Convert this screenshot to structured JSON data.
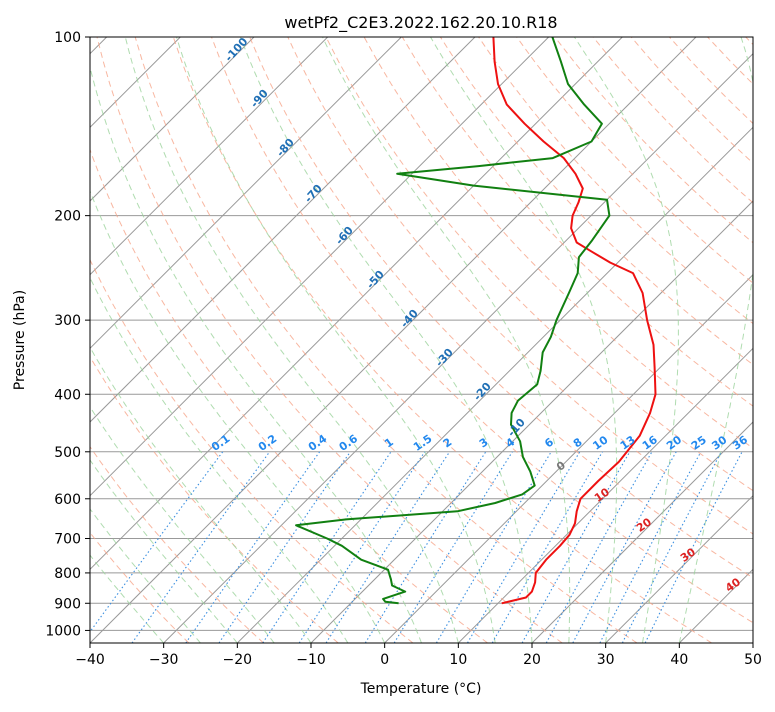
{
  "chart_data": {
    "type": "line",
    "title": "wetPf2_C2E3.2022.162.20.10.R18",
    "xlabel": "Temperature (°C)",
    "ylabel": "Pressure (hPa)",
    "xlim": [
      -40,
      50
    ],
    "ylim": [
      1050,
      100
    ],
    "y_scale": "log",
    "grid": true,
    "x_ticks": [
      -40,
      -30,
      -20,
      -10,
      0,
      10,
      20,
      30,
      40,
      50
    ],
    "y_ticks": [
      100,
      200,
      300,
      400,
      500,
      600,
      700,
      800,
      900,
      1000
    ],
    "skew_description": "skew-T log-P diagram",
    "colors": {
      "temperature": "#ee1111",
      "dewpoint": "#118011",
      "isotherm_grid": "#999999",
      "dry_adiabat": "#f6a58a",
      "moist_adiabat": "#9cd39c",
      "mixing_ratio": "#3b8fe0",
      "mixing_label": "#2288ee",
      "theta_e_label": "#1f6fb5",
      "lcl_label": "#777777",
      "warm_label": "#dd2222"
    },
    "series": [
      {
        "key": "temperature",
        "points": [
          [
            10.5,
            900
          ],
          [
            13.0,
            880
          ],
          [
            13.0,
            860
          ],
          [
            12.2,
            830
          ],
          [
            11.0,
            800
          ],
          [
            10.6,
            760
          ],
          [
            10.6,
            720
          ],
          [
            10.4,
            690
          ],
          [
            9.6,
            660
          ],
          [
            8.2,
            630
          ],
          [
            7.0,
            600
          ],
          [
            7.0,
            560
          ],
          [
            7.2,
            520
          ],
          [
            6.5,
            470
          ],
          [
            4.8,
            430
          ],
          [
            3.0,
            400
          ],
          [
            -0.8,
            360
          ],
          [
            -4.0,
            330
          ],
          [
            -8.2,
            300
          ],
          [
            -12.5,
            270
          ],
          [
            -16.5,
            250
          ],
          [
            -21.0,
            240
          ],
          [
            -25.0,
            230
          ],
          [
            -28.3,
            222
          ],
          [
            -31.0,
            210
          ],
          [
            -32.5,
            200
          ],
          [
            -33.5,
            190
          ],
          [
            -34.8,
            180
          ],
          [
            -37.8,
            170
          ],
          [
            -41.5,
            160
          ],
          [
            -46.5,
            150
          ],
          [
            -51.5,
            140
          ],
          [
            -56.5,
            130
          ],
          [
            -60.5,
            120
          ],
          [
            -64.0,
            110
          ],
          [
            -67.5,
            100
          ]
        ]
      },
      {
        "key": "dewpoint",
        "points": [
          [
            -3.5,
            900
          ],
          [
            -5.5,
            895
          ],
          [
            -6.2,
            885
          ],
          [
            -4.2,
            860
          ],
          [
            -6.8,
            840
          ],
          [
            -7.8,
            820
          ],
          [
            -9.5,
            790
          ],
          [
            -14.5,
            760
          ],
          [
            -19.0,
            720
          ],
          [
            -22.0,
            700
          ],
          [
            -28.0,
            665
          ],
          [
            -22.0,
            650
          ],
          [
            -8.0,
            630
          ],
          [
            -4.0,
            610
          ],
          [
            -1.5,
            590
          ],
          [
            -1.0,
            570
          ],
          [
            -3.5,
            540
          ],
          [
            -6.5,
            510
          ],
          [
            -9.0,
            480
          ],
          [
            -12.5,
            450
          ],
          [
            -14.0,
            430
          ],
          [
            -14.8,
            410
          ],
          [
            -14.4,
            385
          ],
          [
            -15.8,
            365
          ],
          [
            -18.0,
            340
          ],
          [
            -19.0,
            320
          ],
          [
            -20.5,
            300
          ],
          [
            -22.5,
            270
          ],
          [
            -24.0,
            250
          ],
          [
            -26.0,
            235
          ],
          [
            -26.5,
            220
          ],
          [
            -27.5,
            200
          ],
          [
            -30.0,
            188
          ],
          [
            -50.0,
            178
          ],
          [
            -62.0,
            170
          ],
          [
            -52.0,
            165
          ],
          [
            -43.0,
            160
          ],
          [
            -40.0,
            150
          ],
          [
            -41.0,
            140
          ],
          [
            -46.0,
            130
          ],
          [
            -51.0,
            120
          ],
          [
            -55.0,
            110
          ],
          [
            -59.5,
            100
          ]
        ]
      }
    ],
    "annotations": {
      "theta_e_labels": [
        "-100",
        "-90",
        "-80",
        "-70",
        "-60",
        "-50",
        "-40",
        "-30",
        "-20",
        "-10"
      ],
      "mixing_ratio_labels": [
        "0.1",
        "0.2",
        "0.4",
        "0.6",
        "1",
        "1.5",
        "2",
        "3",
        "4",
        "6",
        "8",
        "10",
        "13",
        "16",
        "20",
        "25",
        "30",
        "36"
      ],
      "lcl_label": "0",
      "warm_labels": [
        "10",
        "20",
        "30",
        "40"
      ]
    }
  }
}
